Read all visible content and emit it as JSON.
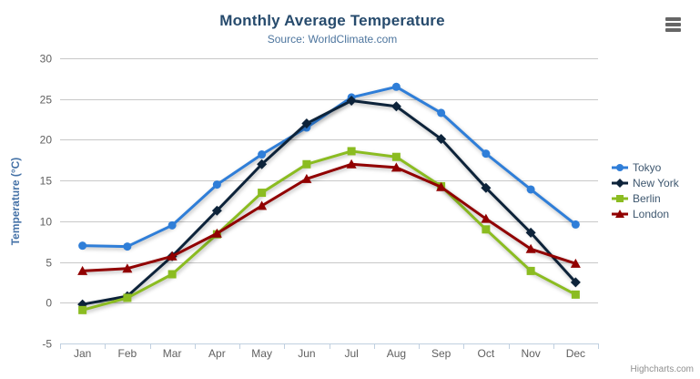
{
  "chart": {
    "title": "Monthly Average Temperature",
    "subtitle": "Source: WorldClimate.com",
    "credit": "Highcharts.com",
    "context_menu_icon": "hamburger-icon"
  },
  "colors": {
    "title": "#274b6d",
    "subtitle": "#4d759e",
    "axis_labels": "#606060",
    "y_axis_title": "#4572a7",
    "gridline": "#c8c8c8",
    "axis_line": "#c0d0e0",
    "legend_text": "#3e576f",
    "credit_text": "#909090",
    "burger_icon": "#666666"
  },
  "chart_data": {
    "type": "line",
    "title": "Monthly Average Temperature",
    "subtitle": "Source: WorldClimate.com",
    "categories": [
      "Jan",
      "Feb",
      "Mar",
      "Apr",
      "May",
      "Jun",
      "Jul",
      "Aug",
      "Sep",
      "Oct",
      "Nov",
      "Dec"
    ],
    "series": [
      {
        "name": "Tokyo",
        "color": "#2f7ed8",
        "marker": "circle",
        "values": [
          7.0,
          6.9,
          9.5,
          14.5,
          18.2,
          21.5,
          25.2,
          26.5,
          23.3,
          18.3,
          13.9,
          9.6
        ]
      },
      {
        "name": "New York",
        "color": "#0d233a",
        "marker": "diamond",
        "values": [
          -0.2,
          0.8,
          5.7,
          11.3,
          17.0,
          22.0,
          24.8,
          24.1,
          20.1,
          14.1,
          8.6,
          2.5
        ]
      },
      {
        "name": "Berlin",
        "color": "#8bbc21",
        "marker": "square",
        "values": [
          -0.9,
          0.6,
          3.5,
          8.4,
          13.5,
          17.0,
          18.6,
          17.9,
          14.3,
          9.0,
          3.9,
          1.0
        ]
      },
      {
        "name": "London",
        "color": "#910000",
        "marker": "triangle",
        "values": [
          3.9,
          4.2,
          5.7,
          8.5,
          11.9,
          15.2,
          17.0,
          16.6,
          14.2,
          10.3,
          6.6,
          4.8
        ]
      }
    ],
    "xlabel": "",
    "ylabel": "Temperature (°C)",
    "ylim": [
      -5,
      30
    ],
    "ytick_step": 5,
    "grid": true,
    "legend_position": "right"
  }
}
